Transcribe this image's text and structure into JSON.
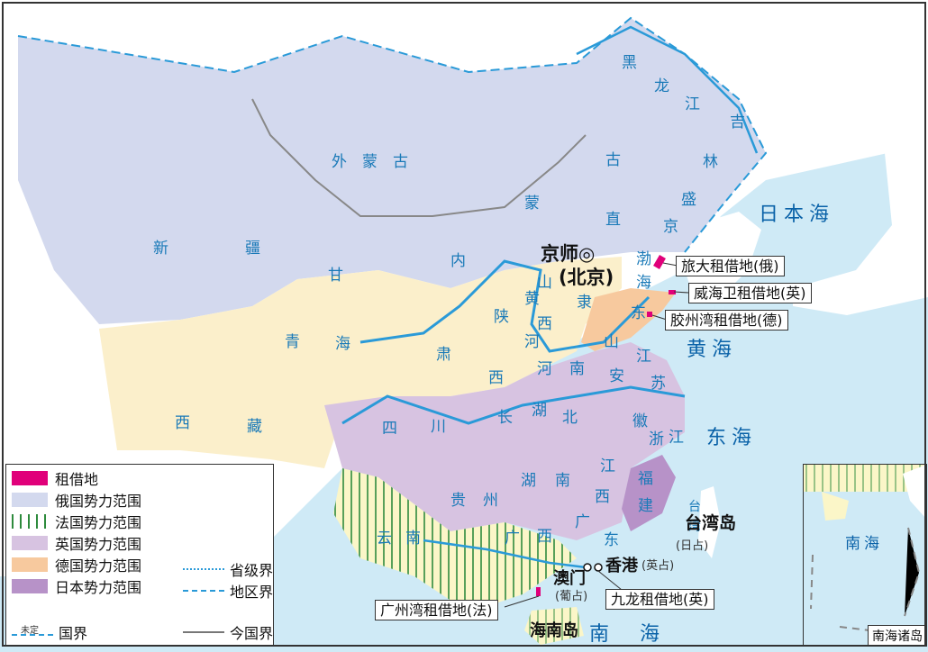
{
  "regions": {
    "waimenggu": "外　蒙　古",
    "neimenggu": [
      "内",
      "蒙",
      "古"
    ],
    "xinjiang": [
      "新",
      "疆"
    ],
    "heilongjiang": [
      "黑",
      "龙",
      "江"
    ],
    "jilin": [
      "吉",
      "林"
    ],
    "shengjing": [
      "盛",
      "京"
    ],
    "zhili": [
      "直"
    ],
    "gansu": [
      "甘",
      "肃"
    ],
    "qinghai": [
      "青",
      "海"
    ],
    "xizang": [
      "西",
      "藏"
    ],
    "sichuan": [
      "四",
      "川"
    ],
    "shanxi_n": [
      "山",
      "西"
    ],
    "shanxi_s": [
      "陕",
      "西"
    ],
    "huanghe": [
      "黄",
      "河"
    ],
    "li": "隶",
    "shandong": [
      "山",
      "东"
    ],
    "henan": [
      "河",
      "南"
    ],
    "hubei": [
      "湖",
      "北"
    ],
    "hunan": [
      "湖",
      "南"
    ],
    "anhui": [
      "安",
      "徽"
    ],
    "jiangsu": [
      "江",
      "苏"
    ],
    "zhejiang": [
      "浙",
      "江"
    ],
    "jiangxi": [
      "江",
      "西"
    ],
    "fujian": [
      "福",
      "建"
    ],
    "guizhou": [
      "贵",
      "州"
    ],
    "yunnan": [
      "云",
      "南"
    ],
    "guangxi": [
      "广",
      "西"
    ],
    "guangdong": [
      "广",
      "东"
    ],
    "changjiang": "长",
    "bohai": [
      "渤",
      "海"
    ],
    "taiwan_pillar": [
      "台",
      "湾"
    ]
  },
  "seas": {
    "japan_sea": "日本海",
    "yellow_sea": "黄海",
    "east_sea": "东海",
    "south_sea": "南　海",
    "inset_sea": "南海"
  },
  "places": {
    "capital": "京师◎",
    "capital_sub": "(北京)",
    "taiwan_island": "台湾岛",
    "taiwan_note": "(日占)",
    "hongkong": "香港",
    "hongkong_note": "(英占)",
    "macau": "澳门",
    "macau_note": "(葡占)",
    "hainan": "海南岛"
  },
  "leases": {
    "lushun": "旅大租借地(俄)",
    "weihai": "威海卫租借地(英)",
    "jiaozhou": "胶州湾租借地(德)",
    "guangzhouwan": "广州湾租借地(法)",
    "jiulong": "九龙租借地(英)"
  },
  "legend": {
    "items": [
      {
        "label": "租借地",
        "color": "#e0007a"
      },
      {
        "label": "俄国势力范围",
        "color": "#d3d9ee"
      },
      {
        "label": "法国势力范围",
        "color": "#2e8b3d"
      },
      {
        "label": "英国势力范围",
        "color": "#d7c3e1"
      },
      {
        "label": "德国势力范围",
        "color": "#f7c99e"
      },
      {
        "label": "日本势力范围",
        "color": "#b792c8"
      }
    ],
    "lines": {
      "province": "省级界",
      "district": "地区界",
      "national_prefix": "未定",
      "national": "国界",
      "today": "今国界"
    }
  },
  "inset_title": "南海诸岛"
}
